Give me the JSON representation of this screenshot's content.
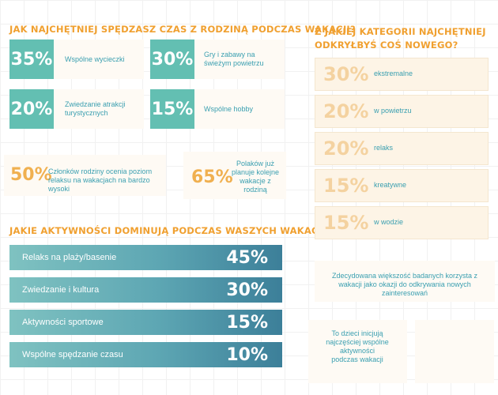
{
  "heading1": "JAK NAJCHĘTNIEJ SPĘDZASZ CZAS Z RODZINĄ PODCZAS WAKACJI?",
  "heading2_line1": "Z JAKIEJ KATEGORII NAJCHĘTNIEJ",
  "heading2_line2": "ODKRYŁBYŚ COŚ NOWEGO?",
  "heading3": "JAKIE AKTYWNOŚCI DOMINUJĄ PODCZAS WASZYCH WAKACJI?",
  "family_time": [
    {
      "value": "35%",
      "label": "Wspólne wycieczki"
    },
    {
      "value": "30%",
      "label": "Gry i zabawy na świeżym powietrzu"
    },
    {
      "value": "20%",
      "label": "Zwiedzanie atrakcji turystycznych"
    },
    {
      "value": "15%",
      "label": "Wspólne hobby"
    }
  ],
  "stat1": {
    "value": "50%",
    "text": "Członków rodziny ocenia poziom relaksu na wakacjach na bardzo wysoki"
  },
  "stat2": {
    "value": "65%",
    "text": "Polaków już planuje kolejne wakacje z rodziną"
  },
  "discovery": [
    {
      "value": "30%",
      "label": "ekstremalne"
    },
    {
      "value": "20%",
      "label": "w powietrzu"
    },
    {
      "value": "20%",
      "label": "relaks"
    },
    {
      "value": "15%",
      "label": "kreatywne"
    },
    {
      "value": "15%",
      "label": "w wodzie"
    }
  ],
  "note1": "Zdecydowana większość badanych korzysta z wakacji jako okazji do odkrywania nowych zainteresowań",
  "note2": "To dzieci inicjują najczęściej wspólne aktywności podczas wakacji",
  "chart_data": {
    "type": "bar",
    "title": "JAKIE AKTYWNOŚCI DOMINUJĄ PODCZAS WASZYCH WAKACJI?",
    "categories": [
      "Relaks na plaży/basenie",
      "Zwiedzanie i kultura",
      "Aktywności sportowe",
      "Wspólne spędzanie czasu"
    ],
    "values": [
      45,
      30,
      15,
      10
    ],
    "value_labels": [
      "45%",
      "30%",
      "15%",
      "10%"
    ]
  }
}
